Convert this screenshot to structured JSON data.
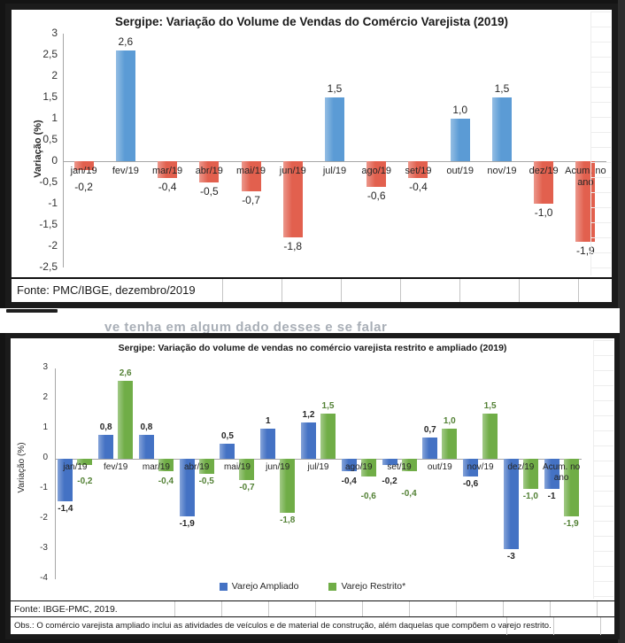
{
  "chart_data": [
    {
      "type": "bar",
      "title": "Sergipe: Variação do Volume de Vendas do Comércio Varejista (2019)",
      "xlabel": "",
      "ylabel": "Variação (%)",
      "categories": [
        "jan/19",
        "fev/19",
        "mar/19",
        "abr/19",
        "mai/19",
        "jun/19",
        "jul/19",
        "ago/19",
        "set/19",
        "out/19",
        "nov/19",
        "dez/19",
        "Acum. no ano"
      ],
      "values": [
        -0.2,
        2.6,
        -0.4,
        -0.5,
        -0.7,
        -1.8,
        1.5,
        -0.6,
        -0.4,
        1.0,
        1.5,
        -1.0,
        -1.9
      ],
      "value_labels": [
        "-0,2",
        "2,6",
        "-0,4",
        "-0,5",
        "-0,7",
        "-1,8",
        "1,5",
        "-0,6",
        "-0,4",
        "1,0",
        "1,5",
        "-1,0",
        "-1,9"
      ],
      "yticks": [
        "3",
        "2,5",
        "2",
        "1,5",
        "1",
        "0,5",
        "0",
        "-0,5",
        "-1",
        "-1,5",
        "-2",
        "-2,5"
      ],
      "ylim": [
        -2.5,
        3
      ],
      "grid": false,
      "bar_colors": {
        "positive": "#5b9bd5",
        "negative": "#e2604e"
      },
      "source": "Fonte: PMC/IBGE, dezembro/2019"
    },
    {
      "type": "grouped-bar",
      "title": "Sergipe: Variação do volume de vendas no comércio varejista restrito e ampliado (2019)",
      "xlabel": "",
      "ylabel": "Variação (%)",
      "categories": [
        "jan/19",
        "fev/19",
        "mar/19",
        "abr/19",
        "mai/19",
        "jun/19",
        "jul/19",
        "ago/19",
        "set/19",
        "out/19",
        "nov/19",
        "dez/19",
        "Acum. no ano"
      ],
      "series": [
        {
          "name": "Varejo Ampliado",
          "color": "#4472c4",
          "label_color": "#262626",
          "values": [
            -1.4,
            0.8,
            0.8,
            -1.9,
            0.5,
            1,
            1.2,
            -0.4,
            -0.2,
            0.7,
            -0.6,
            -3,
            -1
          ],
          "value_labels": [
            "-1,4",
            "0,8",
            "0,8",
            "-1,9",
            "0,5",
            "1",
            "1,2",
            "-0,4",
            "-0,2",
            "0,7",
            "-0,6",
            "-3",
            "-1"
          ]
        },
        {
          "name": "Varejo Restrito*",
          "color": "#70ad47",
          "label_color": "#538135",
          "values": [
            -0.2,
            2.6,
            -0.4,
            -0.5,
            -0.7,
            -1.8,
            1.5,
            -0.6,
            -0.4,
            1.0,
            1.5,
            -1.0,
            -1.9
          ],
          "value_labels": [
            "-0,2",
            "2,6",
            "-0,4",
            "-0,5",
            "-0,7",
            "-1,8",
            "1,5",
            "-0,6",
            "-0,4",
            "1,0",
            "1,5",
            "-1,0",
            "-1,9"
          ]
        }
      ],
      "yticks": [
        "3",
        "2",
        "1",
        "0",
        "-1",
        "-2",
        "-3",
        "-4"
      ],
      "ylim": [
        -4,
        3
      ],
      "grid": false,
      "legend_position": "bottom",
      "source": "Fonte: IBGE-PMC, 2019.",
      "note": "Obs.: O comércio varejista ampliado inclui as atividades de veículos e de material de construção, além daquelas que compõem o varejo restrito."
    }
  ],
  "background_fragments": {
    "between_charts_text": "ve tenha em algum dado desses e se falar"
  }
}
